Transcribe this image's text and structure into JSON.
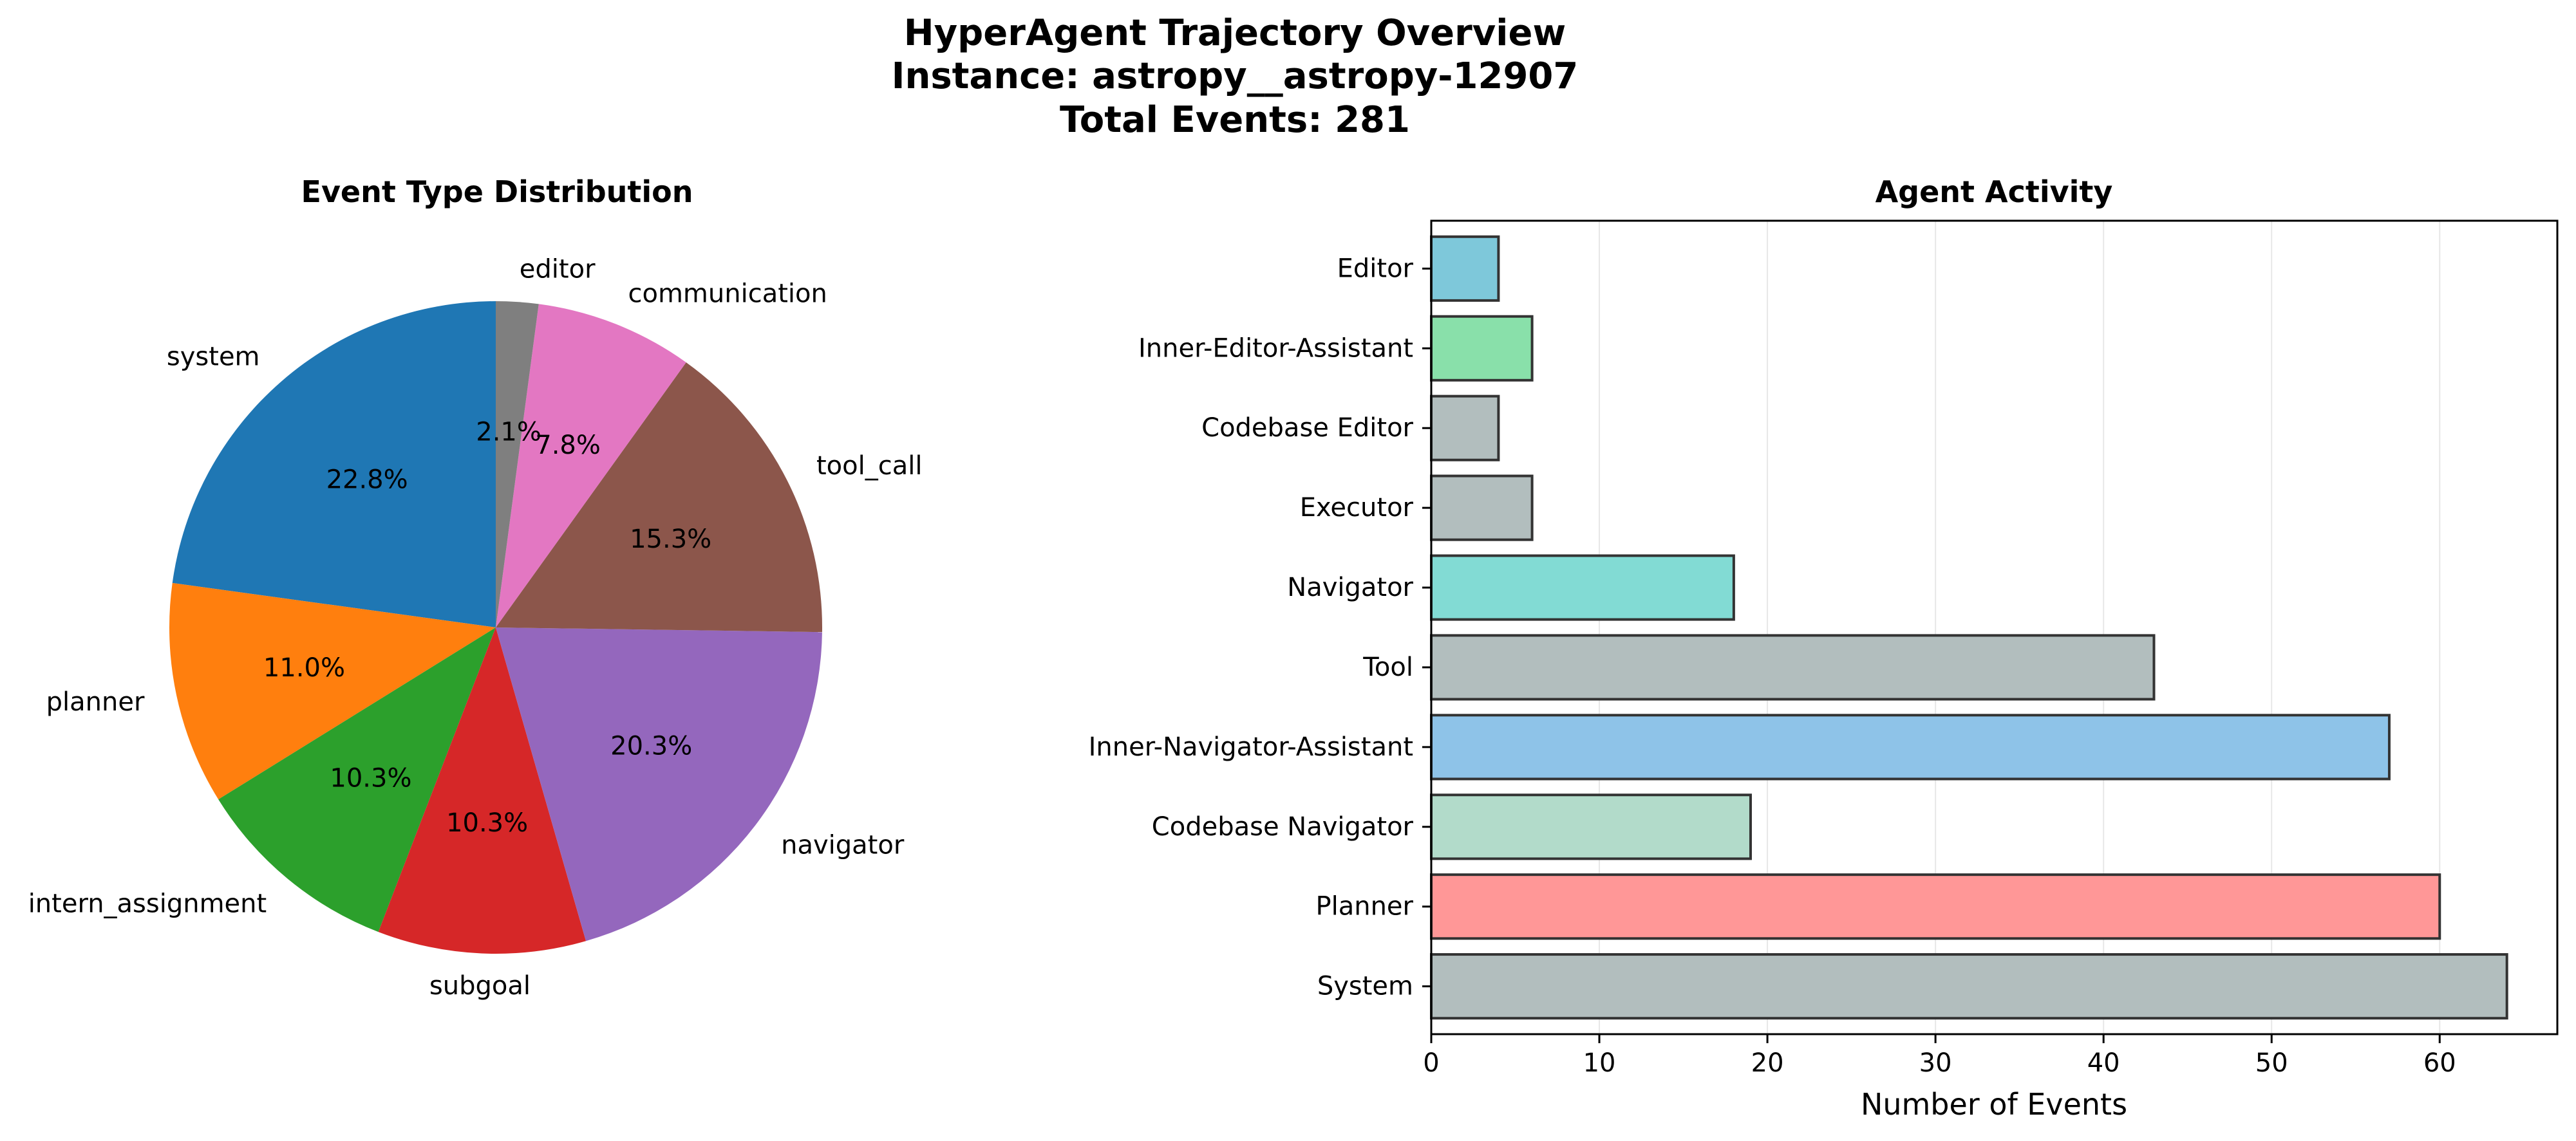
{
  "figure": {
    "title_lines": [
      "HyperAgent Trajectory Overview",
      "Instance: astropy__astropy-12907",
      "Total Events: 281"
    ]
  },
  "chart_data": [
    {
      "type": "pie",
      "title": "Event Type Distribution",
      "start_angle_deg": 90,
      "direction": "counterclockwise",
      "slices": [
        {
          "label": "system",
          "value": 22.8,
          "pct_label": "22.8%",
          "color": "#1f77b4"
        },
        {
          "label": "planner",
          "value": 11.0,
          "pct_label": "11.0%",
          "color": "#ff7f0e"
        },
        {
          "label": "intern_assignment",
          "value": 10.3,
          "pct_label": "10.3%",
          "color": "#2ca02c"
        },
        {
          "label": "subgoal",
          "value": 10.3,
          "pct_label": "10.3%",
          "color": "#d62728"
        },
        {
          "label": "navigator",
          "value": 20.3,
          "pct_label": "20.3%",
          "color": "#9467bd"
        },
        {
          "label": "tool_call",
          "value": 15.3,
          "pct_label": "15.3%",
          "color": "#8c564b"
        },
        {
          "label": "communication",
          "value": 7.8,
          "pct_label": "7.8%",
          "color": "#e377c2"
        },
        {
          "label": "editor",
          "value": 2.1,
          "pct_label": "2.1%",
          "color": "#7f7f7f"
        }
      ]
    },
    {
      "type": "bar",
      "orientation": "horizontal",
      "title": "Agent Activity",
      "xlabel": "Number of Events",
      "ylabel": "",
      "xlim": [
        0,
        67
      ],
      "xticks": [
        0,
        10,
        20,
        30,
        40,
        50,
        60
      ],
      "grid": "x",
      "categories": [
        "System",
        "Planner",
        "Codebase Navigator",
        "Inner-Navigator-Assistant",
        "Tool",
        "Navigator",
        "Executor",
        "Codebase Editor",
        "Inner-Editor-Assistant",
        "Editor"
      ],
      "values": [
        64,
        60,
        19,
        57,
        43,
        18,
        6,
        4,
        6,
        4
      ],
      "colors": [
        "#b2bebe",
        "#ff9797",
        "#b2dbca",
        "#8ec3e8",
        "#b2bebe",
        "#82dbd4",
        "#b2bebe",
        "#b2bebe",
        "#89e0aa",
        "#7ec8da"
      ]
    }
  ]
}
